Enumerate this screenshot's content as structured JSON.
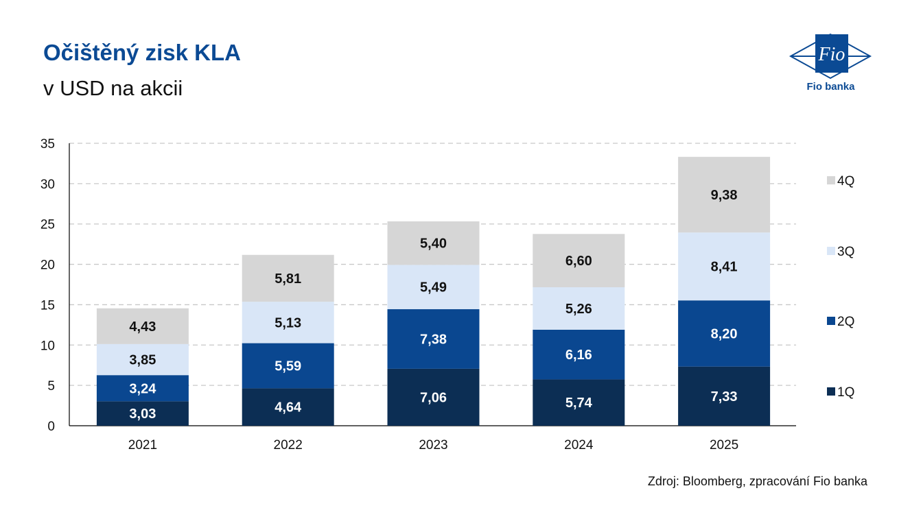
{
  "header": {
    "title": "Očištěný zisk KLA",
    "subtitle": "v USD na akcii"
  },
  "logo": {
    "mark_text": "Fio",
    "text": "Fio banka",
    "icon": "fio-banka-logo"
  },
  "footer": {
    "source": "Zdroj: Bloomberg, zpracování Fio banka"
  },
  "colors": {
    "1Q": "#0c2e54",
    "2Q": "#0a4790",
    "3Q": "#d9e6f7",
    "4Q": "#d6d6d6",
    "brand": "#0b4a94"
  },
  "chart_data": {
    "type": "bar",
    "stacked": true,
    "title": "Očištěný zisk KLA",
    "subtitle": "v USD na akcii",
    "categories": [
      "2021",
      "2022",
      "2023",
      "2024",
      "2025"
    ],
    "series": [
      {
        "name": "1Q",
        "values": [
          3.03,
          4.64,
          7.06,
          5.74,
          7.33
        ],
        "labels": [
          "3,03",
          "4,64",
          "7,06",
          "5,74",
          "7,33"
        ]
      },
      {
        "name": "2Q",
        "values": [
          3.24,
          5.59,
          7.38,
          6.16,
          8.2
        ],
        "labels": [
          "3,24",
          "5,59",
          "7,38",
          "6,16",
          "8,20"
        ]
      },
      {
        "name": "3Q",
        "values": [
          3.85,
          5.13,
          5.49,
          5.26,
          8.41
        ],
        "labels": [
          "3,85",
          "5,13",
          "5,49",
          "5,26",
          "8,41"
        ]
      },
      {
        "name": "4Q",
        "values": [
          4.43,
          5.81,
          5.4,
          6.6,
          9.38
        ],
        "labels": [
          "4,43",
          "5,81",
          "5,40",
          "6,60",
          "9,38"
        ]
      }
    ],
    "ylim": [
      0,
      35
    ],
    "yticks": [
      0,
      5,
      10,
      15,
      20,
      25,
      30,
      35
    ],
    "ytick_labels": [
      "0",
      "5",
      "10",
      "15",
      "20",
      "25",
      "30",
      "35"
    ],
    "grid": true,
    "legend": {
      "placement": "right",
      "order": [
        "4Q",
        "3Q",
        "2Q",
        "1Q"
      ]
    }
  }
}
